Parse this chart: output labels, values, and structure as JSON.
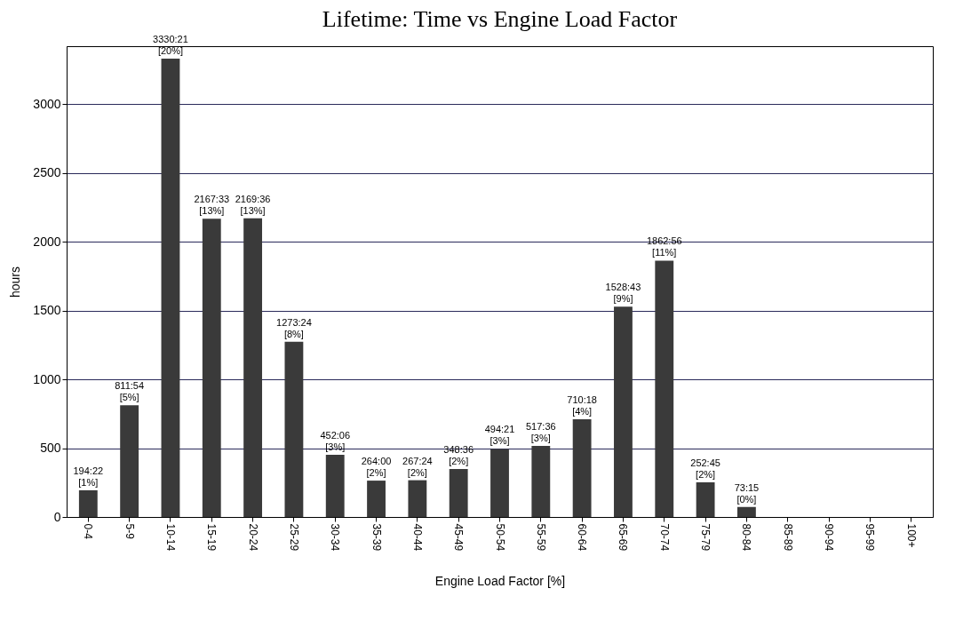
{
  "chart_data": {
    "type": "bar",
    "title": "Lifetime: Time vs Engine Load Factor",
    "xlabel": "Engine Load Factor [%]",
    "ylabel": "hours",
    "categories": [
      "0-4",
      "5-9",
      "10-14",
      "15-19",
      "20-24",
      "25-29",
      "30-34",
      "35-39",
      "40-44",
      "45-49",
      "50-54",
      "55-59",
      "60-64",
      "65-69",
      "70-74",
      "75-79",
      "80-84",
      "85-89",
      "90-94",
      "95-99",
      "100+"
    ],
    "values": [
      194,
      811,
      3330,
      2167,
      2169,
      1273,
      452,
      264,
      267,
      348,
      494,
      517,
      710,
      1528,
      1862,
      252,
      73,
      0,
      0,
      0,
      0
    ],
    "value_labels": [
      "194:22 [1%]",
      "811:54 [5%]",
      "3330:21 [20%]",
      "2167:33 [13%]",
      "2169:36 [13%]",
      "1273:24 [8%]",
      "452:06 [3%]",
      "264:00 [2%]",
      "267:24 [2%]",
      "348:36 [2%]",
      "494:21 [3%]",
      "517:36 [3%]",
      "710:18 [4%]",
      "1528:43 [9%]",
      "1862:56 [11%]",
      "252:45 [2%]",
      "73:15 [0%]",
      null,
      null,
      null,
      null
    ],
    "color": "#3a3a3a",
    "ylim": [
      0,
      3420
    ],
    "yticks": [
      0,
      500,
      1000,
      1500,
      2000,
      2500,
      3000
    ],
    "grid": "y"
  }
}
